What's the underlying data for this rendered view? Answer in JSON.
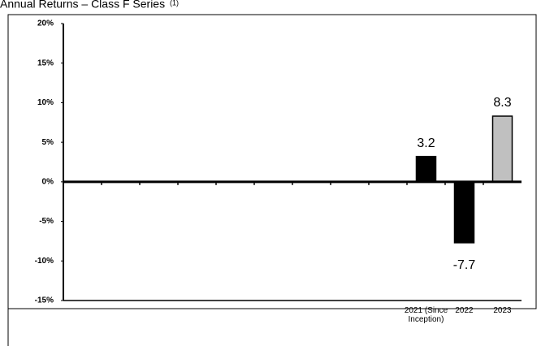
{
  "chart_data": {
    "type": "bar",
    "title": "Annual Returns – Class F Series",
    "title_note": "(1)",
    "categories": [
      null,
      null,
      null,
      null,
      null,
      null,
      null,
      null,
      null,
      "2021 (Since Inception)",
      "2022",
      "2023"
    ],
    "values": [
      null,
      null,
      null,
      null,
      null,
      null,
      null,
      null,
      null,
      3.2,
      -7.7,
      8.3
    ],
    "colors": [
      null,
      null,
      null,
      null,
      null,
      null,
      null,
      null,
      null,
      "#000000",
      "#000000",
      "#c0c0c0"
    ],
    "ylim": [
      -15,
      20
    ],
    "yticks": [
      {
        "value": -15,
        "label": "-15%"
      },
      {
        "value": -10,
        "label": "-10%"
      },
      {
        "value": -5,
        "label": "-5%"
      },
      {
        "value": 0,
        "label": "0%"
      },
      {
        "value": 5,
        "label": "5%"
      },
      {
        "value": 10,
        "label": "10%"
      },
      {
        "value": 15,
        "label": "15%"
      },
      {
        "value": 20,
        "label": "20%"
      }
    ]
  }
}
